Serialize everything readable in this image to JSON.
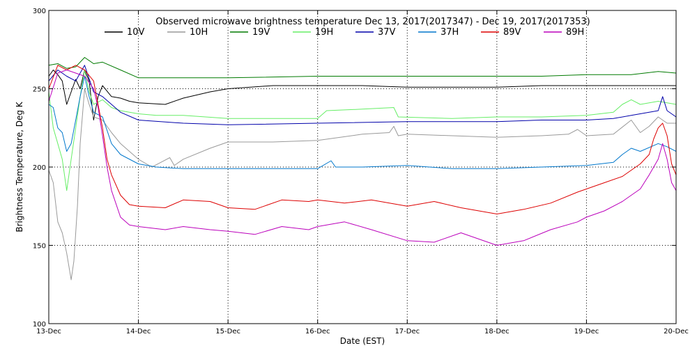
{
  "chart_data": {
    "type": "line",
    "title": "Observed microwave brightness temperature Dec 13, 2017(2017347) - Dec 19, 2017(2017353)",
    "xlabel": "Date (EST)",
    "ylabel": "Brightness Temperature, Deg K",
    "xlim": [
      0,
      7
    ],
    "ylim": [
      100,
      300
    ],
    "x_ticks": [
      0,
      1,
      2,
      3,
      4,
      5,
      6,
      7
    ],
    "x_tick_labels": [
      "13-Dec",
      "14-Dec",
      "15-Dec",
      "16-Dec",
      "17-Dec",
      "18-Dec",
      "19-Dec",
      "20-Dec"
    ],
    "y_ticks": [
      100,
      150,
      200,
      250,
      300
    ],
    "y_tick_labels": [
      "100",
      "150",
      "200",
      "250",
      "300"
    ],
    "grid": "dotted",
    "legend_position": "top",
    "series": [
      {
        "name": "10V",
        "color": "#000000",
        "points": [
          [
            0,
            258
          ],
          [
            0.05,
            262
          ],
          [
            0.1,
            259
          ],
          [
            0.15,
            255
          ],
          [
            0.2,
            240
          ],
          [
            0.25,
            248
          ],
          [
            0.3,
            256
          ],
          [
            0.35,
            250
          ],
          [
            0.4,
            262
          ],
          [
            0.45,
            255
          ],
          [
            0.5,
            230
          ],
          [
            0.55,
            245
          ],
          [
            0.6,
            252
          ],
          [
            0.7,
            245
          ],
          [
            0.8,
            244
          ],
          [
            0.9,
            242
          ],
          [
            1,
            241
          ],
          [
            1.3,
            240
          ],
          [
            1.5,
            244
          ],
          [
            1.8,
            248
          ],
          [
            2,
            250
          ],
          [
            2.5,
            252
          ],
          [
            3,
            252
          ],
          [
            3.5,
            252
          ],
          [
            4,
            251
          ],
          [
            4.5,
            251
          ],
          [
            5,
            251
          ],
          [
            5.5,
            252
          ],
          [
            6,
            252
          ],
          [
            6.5,
            252
          ],
          [
            7,
            252
          ]
        ]
      },
      {
        "name": "10H",
        "color": "#999999",
        "points": [
          [
            0,
            198
          ],
          [
            0.05,
            190
          ],
          [
            0.1,
            165
          ],
          [
            0.15,
            158
          ],
          [
            0.2,
            145
          ],
          [
            0.25,
            128
          ],
          [
            0.28,
            140
          ],
          [
            0.32,
            175
          ],
          [
            0.35,
            215
          ],
          [
            0.4,
            250
          ],
          [
            0.45,
            240
          ],
          [
            0.5,
            232
          ],
          [
            0.6,
            230
          ],
          [
            0.7,
            222
          ],
          [
            0.8,
            215
          ],
          [
            0.9,
            210
          ],
          [
            1,
            205
          ],
          [
            1.15,
            200
          ],
          [
            1.25,
            203
          ],
          [
            1.35,
            206
          ],
          [
            1.4,
            201
          ],
          [
            1.5,
            205
          ],
          [
            1.8,
            212
          ],
          [
            2,
            216
          ],
          [
            2.5,
            216
          ],
          [
            3,
            217
          ],
          [
            3.5,
            221
          ],
          [
            3.8,
            222
          ],
          [
            3.85,
            226
          ],
          [
            3.9,
            220
          ],
          [
            4,
            221
          ],
          [
            4.5,
            220
          ],
          [
            5,
            219
          ],
          [
            5.5,
            220
          ],
          [
            5.8,
            221
          ],
          [
            5.9,
            224
          ],
          [
            6,
            220
          ],
          [
            6.3,
            221
          ],
          [
            6.5,
            230
          ],
          [
            6.6,
            222
          ],
          [
            6.7,
            226
          ],
          [
            6.8,
            232
          ],
          [
            6.9,
            228
          ],
          [
            7,
            228
          ]
        ]
      },
      {
        "name": "19V",
        "color": "#007a00",
        "points": [
          [
            0,
            265
          ],
          [
            0.1,
            266
          ],
          [
            0.2,
            263
          ],
          [
            0.3,
            264
          ],
          [
            0.4,
            270
          ],
          [
            0.5,
            266
          ],
          [
            0.6,
            267
          ],
          [
            0.8,
            262
          ],
          [
            1,
            257
          ],
          [
            1.5,
            257
          ],
          [
            2,
            257
          ],
          [
            3,
            258
          ],
          [
            4,
            258
          ],
          [
            5,
            258
          ],
          [
            5.5,
            258
          ],
          [
            6,
            259
          ],
          [
            6.5,
            259
          ],
          [
            6.8,
            261
          ],
          [
            7,
            260
          ]
        ]
      },
      {
        "name": "19H",
        "color": "#66ee66",
        "points": [
          [
            0,
            248
          ],
          [
            0.05,
            225
          ],
          [
            0.1,
            215
          ],
          [
            0.15,
            205
          ],
          [
            0.2,
            185
          ],
          [
            0.25,
            205
          ],
          [
            0.3,
            225
          ],
          [
            0.35,
            245
          ],
          [
            0.4,
            262
          ],
          [
            0.45,
            248
          ],
          [
            0.5,
            240
          ],
          [
            0.6,
            243
          ],
          [
            0.7,
            238
          ],
          [
            0.8,
            236
          ],
          [
            1,
            234
          ],
          [
            1.2,
            233
          ],
          [
            1.5,
            233
          ],
          [
            2,
            231
          ],
          [
            3,
            231
          ],
          [
            3.1,
            236
          ],
          [
            3.5,
            237
          ],
          [
            3.85,
            238
          ],
          [
            3.9,
            232
          ],
          [
            4.5,
            231
          ],
          [
            5,
            232
          ],
          [
            5.5,
            232
          ],
          [
            6,
            233
          ],
          [
            6.3,
            235
          ],
          [
            6.4,
            240
          ],
          [
            6.5,
            243
          ],
          [
            6.6,
            240
          ],
          [
            6.8,
            242
          ],
          [
            7,
            240
          ]
        ]
      },
      {
        "name": "37V",
        "color": "#0000aa",
        "points": [
          [
            0,
            255
          ],
          [
            0.1,
            262
          ],
          [
            0.2,
            258
          ],
          [
            0.3,
            255
          ],
          [
            0.4,
            265
          ],
          [
            0.5,
            248
          ],
          [
            0.6,
            245
          ],
          [
            0.8,
            235
          ],
          [
            1,
            230
          ],
          [
            1.5,
            228
          ],
          [
            2,
            227
          ],
          [
            3,
            228
          ],
          [
            4,
            229
          ],
          [
            4.5,
            229
          ],
          [
            5,
            229
          ],
          [
            5.5,
            230
          ],
          [
            6,
            230
          ],
          [
            6.3,
            231
          ],
          [
            6.5,
            233
          ],
          [
            6.6,
            234
          ],
          [
            6.8,
            236
          ],
          [
            6.85,
            245
          ],
          [
            6.9,
            236
          ],
          [
            7,
            232
          ]
        ]
      },
      {
        "name": "37H",
        "color": "#0077cc",
        "points": [
          [
            0,
            240
          ],
          [
            0.05,
            238
          ],
          [
            0.1,
            225
          ],
          [
            0.15,
            222
          ],
          [
            0.2,
            210
          ],
          [
            0.25,
            215
          ],
          [
            0.3,
            230
          ],
          [
            0.35,
            245
          ],
          [
            0.4,
            258
          ],
          [
            0.45,
            245
          ],
          [
            0.5,
            235
          ],
          [
            0.6,
            232
          ],
          [
            0.7,
            215
          ],
          [
            0.8,
            208
          ],
          [
            1,
            202
          ],
          [
            1.2,
            200
          ],
          [
            1.5,
            199
          ],
          [
            2,
            199
          ],
          [
            3,
            199
          ],
          [
            3.15,
            204
          ],
          [
            3.2,
            200
          ],
          [
            3.5,
            200
          ],
          [
            4,
            201
          ],
          [
            4.5,
            199
          ],
          [
            5,
            199
          ],
          [
            5.5,
            200
          ],
          [
            6,
            201
          ],
          [
            6.3,
            203
          ],
          [
            6.4,
            208
          ],
          [
            6.5,
            212
          ],
          [
            6.6,
            210
          ],
          [
            6.8,
            215
          ],
          [
            6.9,
            213
          ],
          [
            7,
            210
          ]
        ]
      },
      {
        "name": "89V",
        "color": "#dd0000",
        "points": [
          [
            0,
            250
          ],
          [
            0.1,
            265
          ],
          [
            0.2,
            262
          ],
          [
            0.3,
            265
          ],
          [
            0.4,
            262
          ],
          [
            0.5,
            255
          ],
          [
            0.55,
            240
          ],
          [
            0.6,
            225
          ],
          [
            0.65,
            205
          ],
          [
            0.7,
            195
          ],
          [
            0.8,
            182
          ],
          [
            0.9,
            176
          ],
          [
            1,
            175
          ],
          [
            1.3,
            174
          ],
          [
            1.5,
            179
          ],
          [
            1.8,
            178
          ],
          [
            2,
            174
          ],
          [
            2.3,
            173
          ],
          [
            2.6,
            179
          ],
          [
            2.9,
            178
          ],
          [
            3,
            179
          ],
          [
            3.3,
            177
          ],
          [
            3.6,
            179
          ],
          [
            4,
            175
          ],
          [
            4.3,
            178
          ],
          [
            4.6,
            174
          ],
          [
            5,
            170
          ],
          [
            5.3,
            173
          ],
          [
            5.6,
            177
          ],
          [
            5.9,
            184
          ],
          [
            6,
            186
          ],
          [
            6.2,
            190
          ],
          [
            6.4,
            194
          ],
          [
            6.5,
            198
          ],
          [
            6.6,
            202
          ],
          [
            6.7,
            208
          ],
          [
            6.75,
            218
          ],
          [
            6.8,
            225
          ],
          [
            6.85,
            228
          ],
          [
            6.9,
            220
          ],
          [
            6.95,
            202
          ],
          [
            7,
            195
          ]
        ]
      },
      {
        "name": "89H",
        "color": "#bb00bb",
        "points": [
          [
            0,
            242
          ],
          [
            0.1,
            260
          ],
          [
            0.2,
            262
          ],
          [
            0.3,
            260
          ],
          [
            0.4,
            258
          ],
          [
            0.5,
            250
          ],
          [
            0.55,
            238
          ],
          [
            0.6,
            220
          ],
          [
            0.65,
            200
          ],
          [
            0.7,
            185
          ],
          [
            0.8,
            168
          ],
          [
            0.9,
            163
          ],
          [
            1,
            162
          ],
          [
            1.3,
            160
          ],
          [
            1.5,
            162
          ],
          [
            1.8,
            160
          ],
          [
            2,
            159
          ],
          [
            2.3,
            157
          ],
          [
            2.6,
            162
          ],
          [
            2.9,
            160
          ],
          [
            3,
            162
          ],
          [
            3.3,
            165
          ],
          [
            3.6,
            160
          ],
          [
            4,
            153
          ],
          [
            4.3,
            152
          ],
          [
            4.6,
            158
          ],
          [
            5,
            150
          ],
          [
            5.3,
            153
          ],
          [
            5.6,
            160
          ],
          [
            5.9,
            165
          ],
          [
            6,
            168
          ],
          [
            6.2,
            172
          ],
          [
            6.4,
            178
          ],
          [
            6.5,
            182
          ],
          [
            6.6,
            186
          ],
          [
            6.7,
            195
          ],
          [
            6.8,
            205
          ],
          [
            6.85,
            215
          ],
          [
            6.9,
            205
          ],
          [
            6.95,
            190
          ],
          [
            7,
            185
          ]
        ]
      }
    ]
  }
}
